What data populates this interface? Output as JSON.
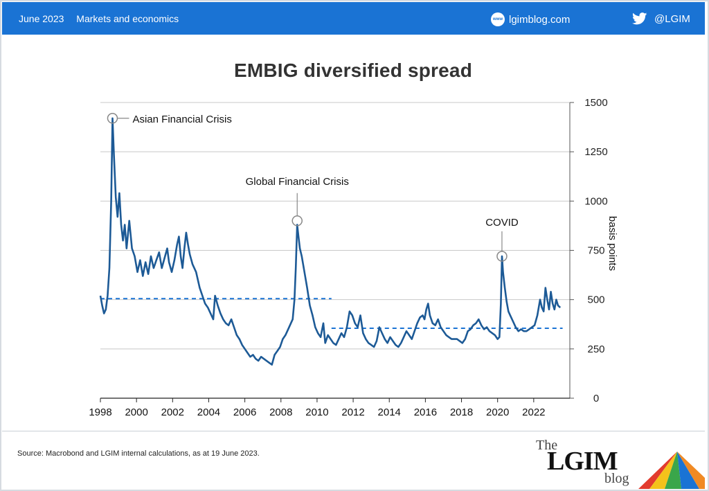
{
  "header": {
    "date": "June 2023",
    "section": "Markets and economics",
    "site": "lgimblog.com",
    "site_icon": "www-globe-icon",
    "twitter": "@LGIM",
    "twitter_icon": "twitter-bird-icon",
    "bar_color": "#1a73d4"
  },
  "footer": {
    "source": "Source: Macrobond and LGIM internal calculations, as at 19 June 2023.",
    "logo_the": "The",
    "logo_name": "LGIM",
    "logo_blog": "blog"
  },
  "chart_data": {
    "type": "line",
    "title": "EMBIG diversified spread",
    "ylabel": "basis points",
    "xlabel": "",
    "xlim": [
      1998,
      2024
    ],
    "ylim": [
      0,
      1500
    ],
    "x_ticks": [
      "1998",
      "2000",
      "2002",
      "2004",
      "2006",
      "2008",
      "2010",
      "2012",
      "2014",
      "2016",
      "2018",
      "2020",
      "2022"
    ],
    "y_ticks": [
      "0",
      "250",
      "500",
      "750",
      "1000",
      "1250",
      "1500"
    ],
    "grid": "horizontal",
    "series": [
      {
        "color": "#1d5a96",
        "points": [
          [
            1998.0,
            520
          ],
          [
            1998.1,
            470
          ],
          [
            1998.2,
            430
          ],
          [
            1998.3,
            450
          ],
          [
            1998.4,
            520
          ],
          [
            1998.5,
            660
          ],
          [
            1998.6,
            1000
          ],
          [
            1998.67,
            1420
          ],
          [
            1998.75,
            1230
          ],
          [
            1998.85,
            1020
          ],
          [
            1998.95,
            920
          ],
          [
            1999.05,
            1040
          ],
          [
            1999.15,
            880
          ],
          [
            1999.25,
            800
          ],
          [
            1999.35,
            880
          ],
          [
            1999.45,
            760
          ],
          [
            1999.6,
            900
          ],
          [
            1999.75,
            760
          ],
          [
            1999.9,
            720
          ],
          [
            2000.05,
            640
          ],
          [
            2000.2,
            700
          ],
          [
            2000.35,
            620
          ],
          [
            2000.5,
            690
          ],
          [
            2000.65,
            630
          ],
          [
            2000.8,
            720
          ],
          [
            2000.95,
            660
          ],
          [
            2001.1,
            700
          ],
          [
            2001.25,
            740
          ],
          [
            2001.4,
            660
          ],
          [
            2001.55,
            710
          ],
          [
            2001.7,
            760
          ],
          [
            2001.8,
            690
          ],
          [
            2001.95,
            640
          ],
          [
            2002.1,
            700
          ],
          [
            2002.25,
            780
          ],
          [
            2002.35,
            820
          ],
          [
            2002.45,
            720
          ],
          [
            2002.55,
            660
          ],
          [
            2002.65,
            760
          ],
          [
            2002.75,
            840
          ],
          [
            2002.85,
            780
          ],
          [
            2002.95,
            730
          ],
          [
            2003.1,
            680
          ],
          [
            2003.3,
            640
          ],
          [
            2003.5,
            560
          ],
          [
            2003.65,
            520
          ],
          [
            2003.8,
            480
          ],
          [
            2003.95,
            460
          ],
          [
            2004.1,
            430
          ],
          [
            2004.25,
            400
          ],
          [
            2004.35,
            520
          ],
          [
            2004.5,
            470
          ],
          [
            2004.65,
            430
          ],
          [
            2004.8,
            400
          ],
          [
            2004.95,
            380
          ],
          [
            2005.1,
            370
          ],
          [
            2005.25,
            400
          ],
          [
            2005.4,
            360
          ],
          [
            2005.55,
            320
          ],
          [
            2005.7,
            300
          ],
          [
            2005.85,
            270
          ],
          [
            2006.0,
            250
          ],
          [
            2006.15,
            230
          ],
          [
            2006.3,
            210
          ],
          [
            2006.45,
            220
          ],
          [
            2006.6,
            200
          ],
          [
            2006.75,
            190
          ],
          [
            2006.9,
            210
          ],
          [
            2007.05,
            200
          ],
          [
            2007.2,
            190
          ],
          [
            2007.35,
            180
          ],
          [
            2007.5,
            170
          ],
          [
            2007.65,
            220
          ],
          [
            2007.8,
            240
          ],
          [
            2007.95,
            260
          ],
          [
            2008.1,
            300
          ],
          [
            2008.25,
            320
          ],
          [
            2008.4,
            350
          ],
          [
            2008.55,
            380
          ],
          [
            2008.65,
            400
          ],
          [
            2008.75,
            500
          ],
          [
            2008.82,
            660
          ],
          [
            2008.9,
            880
          ],
          [
            2008.97,
            820
          ],
          [
            2009.05,
            760
          ],
          [
            2009.15,
            720
          ],
          [
            2009.3,
            640
          ],
          [
            2009.45,
            560
          ],
          [
            2009.6,
            470
          ],
          [
            2009.75,
            420
          ],
          [
            2009.9,
            360
          ],
          [
            2010.05,
            330
          ],
          [
            2010.2,
            310
          ],
          [
            2010.35,
            380
          ],
          [
            2010.45,
            280
          ],
          [
            2010.6,
            320
          ],
          [
            2010.75,
            300
          ],
          [
            2010.9,
            280
          ],
          [
            2011.05,
            270
          ],
          [
            2011.2,
            300
          ],
          [
            2011.35,
            330
          ],
          [
            2011.5,
            310
          ],
          [
            2011.65,
            360
          ],
          [
            2011.8,
            440
          ],
          [
            2011.95,
            420
          ],
          [
            2012.1,
            380
          ],
          [
            2012.25,
            360
          ],
          [
            2012.4,
            420
          ],
          [
            2012.55,
            330
          ],
          [
            2012.7,
            300
          ],
          [
            2012.85,
            280
          ],
          [
            2013.0,
            270
          ],
          [
            2013.15,
            260
          ],
          [
            2013.3,
            290
          ],
          [
            2013.45,
            360
          ],
          [
            2013.6,
            330
          ],
          [
            2013.75,
            300
          ],
          [
            2013.9,
            280
          ],
          [
            2014.05,
            310
          ],
          [
            2014.2,
            290
          ],
          [
            2014.35,
            270
          ],
          [
            2014.5,
            260
          ],
          [
            2014.65,
            280
          ],
          [
            2014.8,
            310
          ],
          [
            2014.95,
            340
          ],
          [
            2015.1,
            320
          ],
          [
            2015.25,
            300
          ],
          [
            2015.4,
            340
          ],
          [
            2015.55,
            380
          ],
          [
            2015.7,
            410
          ],
          [
            2015.85,
            420
          ],
          [
            2015.95,
            400
          ],
          [
            2016.05,
            450
          ],
          [
            2016.15,
            480
          ],
          [
            2016.25,
            420
          ],
          [
            2016.4,
            380
          ],
          [
            2016.55,
            370
          ],
          [
            2016.7,
            400
          ],
          [
            2016.85,
            360
          ],
          [
            2017.0,
            340
          ],
          [
            2017.15,
            320
          ],
          [
            2017.3,
            310
          ],
          [
            2017.45,
            300
          ],
          [
            2017.6,
            300
          ],
          [
            2017.75,
            300
          ],
          [
            2017.9,
            290
          ],
          [
            2018.05,
            280
          ],
          [
            2018.2,
            300
          ],
          [
            2018.35,
            340
          ],
          [
            2018.5,
            350
          ],
          [
            2018.65,
            370
          ],
          [
            2018.8,
            380
          ],
          [
            2018.95,
            400
          ],
          [
            2019.1,
            370
          ],
          [
            2019.25,
            350
          ],
          [
            2019.4,
            360
          ],
          [
            2019.55,
            340
          ],
          [
            2019.7,
            330
          ],
          [
            2019.85,
            320
          ],
          [
            2020.0,
            300
          ],
          [
            2020.1,
            310
          ],
          [
            2020.18,
            480
          ],
          [
            2020.24,
            720
          ],
          [
            2020.3,
            640
          ],
          [
            2020.4,
            560
          ],
          [
            2020.5,
            490
          ],
          [
            2020.6,
            440
          ],
          [
            2020.7,
            420
          ],
          [
            2020.85,
            390
          ],
          [
            2021.0,
            360
          ],
          [
            2021.15,
            340
          ],
          [
            2021.3,
            350
          ],
          [
            2021.45,
            340
          ],
          [
            2021.6,
            340
          ],
          [
            2021.75,
            350
          ],
          [
            2021.9,
            360
          ],
          [
            2022.05,
            370
          ],
          [
            2022.2,
            420
          ],
          [
            2022.35,
            500
          ],
          [
            2022.45,
            460
          ],
          [
            2022.55,
            440
          ],
          [
            2022.65,
            560
          ],
          [
            2022.75,
            500
          ],
          [
            2022.85,
            450
          ],
          [
            2022.95,
            540
          ],
          [
            2023.05,
            480
          ],
          [
            2023.15,
            450
          ],
          [
            2023.25,
            500
          ],
          [
            2023.35,
            470
          ],
          [
            2023.47,
            460
          ]
        ]
      }
    ],
    "reference_lines": [
      {
        "x_from": 1998.0,
        "x_to": 2010.8,
        "y": 505,
        "style": "dashed",
        "color": "#1a73d4"
      },
      {
        "x_from": 2010.8,
        "x_to": 2023.6,
        "y": 355,
        "style": "dashed",
        "color": "#1a73d4"
      }
    ],
    "annotations": [
      {
        "label": "Asian Financial Crisis",
        "x": 1998.67,
        "y": 1420
      },
      {
        "label": "Global Financial Crisis",
        "x": 2008.9,
        "y": 900
      },
      {
        "label": "COVID",
        "x": 2020.24,
        "y": 720
      }
    ]
  }
}
